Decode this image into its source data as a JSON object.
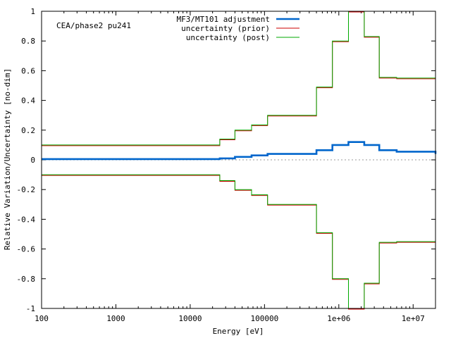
{
  "chart_data": {
    "type": "line",
    "title": "",
    "annotation": "CEA/phase2 pu241",
    "xlabel": "Energy [eV]",
    "ylabel": "Relative Variation/Uncertainty [no-dim]",
    "xscale": "log",
    "xlim": [
      100,
      20000000
    ],
    "ylim": [
      -1,
      1
    ],
    "xticks": [
      {
        "value": 100,
        "label": "100"
      },
      {
        "value": 1000,
        "label": "1000"
      },
      {
        "value": 10000,
        "label": "10000"
      },
      {
        "value": 100000,
        "label": "100000"
      },
      {
        "value": 1000000,
        "label": "1e+06"
      },
      {
        "value": 10000000,
        "label": "1e+07"
      }
    ],
    "yticks": [
      {
        "value": -1,
        "label": "-1"
      },
      {
        "value": -0.8,
        "label": "-0.8"
      },
      {
        "value": -0.6,
        "label": "-0.6"
      },
      {
        "value": -0.4,
        "label": "-0.4"
      },
      {
        "value": -0.2,
        "label": "-0.2"
      },
      {
        "value": 0,
        "label": "0"
      },
      {
        "value": 0.2,
        "label": "0.2"
      },
      {
        "value": 0.4,
        "label": "0.4"
      },
      {
        "value": 0.6,
        "label": "0.6"
      },
      {
        "value": 0.8,
        "label": "0.8"
      },
      {
        "value": 1,
        "label": "1"
      }
    ],
    "zero_line": true,
    "grid": false,
    "legend_position": "top-right",
    "bin_edges": [
      100,
      25000,
      40000,
      67000,
      110000,
      500000,
      820000,
      1350000,
      2200000,
      3500000,
      6000000,
      20000000
    ],
    "series": [
      {
        "name": "MF3/MT101 adjustment",
        "color": "#0066cc",
        "style": "thick-step",
        "values": [
          0.005,
          0.01,
          0.02,
          0.03,
          0.04,
          0.065,
          0.1,
          0.12,
          0.1,
          0.065,
          0.055,
          0.04
        ]
      },
      {
        "name": "uncertainty (prior)",
        "color": "#cc0000",
        "style": "symmetric-step",
        "values": [
          0.1,
          0.14,
          0.2,
          0.235,
          0.3,
          0.49,
          0.8,
          1.0,
          0.83,
          0.555,
          0.55,
          0.55
        ]
      },
      {
        "name": "uncertainty (post)",
        "color": "#00aa00",
        "style": "symmetric-step",
        "values": [
          0.1,
          0.14,
          0.2,
          0.235,
          0.3,
          0.49,
          0.8,
          1.0,
          0.83,
          0.555,
          0.55,
          0.55
        ]
      }
    ]
  }
}
